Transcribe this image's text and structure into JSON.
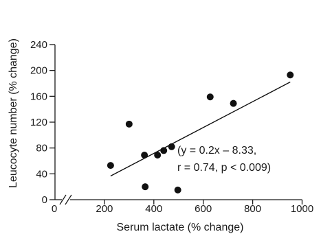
{
  "chart_data": {
    "type": "scatter",
    "xlabel": "Serum lactate (% change)",
    "ylabel": "Leucocyte number (% change)",
    "xlim": [
      0,
      1000
    ],
    "ylim": [
      0,
      240
    ],
    "x_ticks": [
      0,
      200,
      400,
      600,
      800,
      1000
    ],
    "y_ticks": [
      0,
      40,
      80,
      120,
      160,
      200,
      240
    ],
    "x_axis_break": true,
    "series": [
      {
        "points": [
          {
            "x": 225,
            "y": 53
          },
          {
            "x": 300,
            "y": 117
          },
          {
            "x": 362,
            "y": 69
          },
          {
            "x": 365,
            "y": 20
          },
          {
            "x": 415,
            "y": 69
          },
          {
            "x": 440,
            "y": 76
          },
          {
            "x": 472,
            "y": 82
          },
          {
            "x": 497,
            "y": 15
          },
          {
            "x": 628,
            "y": 159
          },
          {
            "x": 722,
            "y": 149
          },
          {
            "x": 952,
            "y": 193
          }
        ]
      }
    ],
    "fit_line": {
      "x_start": 225,
      "x_end": 952,
      "slope": 0.2,
      "intercept": -8.33
    },
    "annotation": {
      "line1": "(y = 0.2x – 8.33,",
      "line2": "r = 0.74, p < 0.009)"
    }
  }
}
